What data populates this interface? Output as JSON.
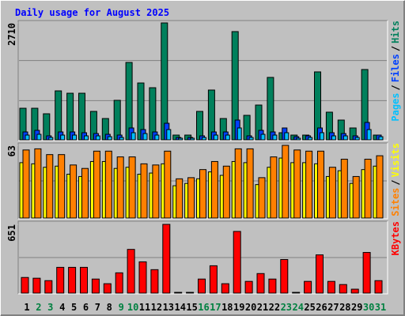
{
  "title": "Daily usage for August 2025",
  "separator": "/",
  "chart_data": [
    {
      "type": "bar",
      "ylim": [
        0,
        2710
      ],
      "yticks": [
        2710
      ],
      "series": [
        {
          "name": "Hits",
          "color": "#00805c",
          "values": [
            732,
            732,
            604,
            1135,
            1080,
            1080,
            659,
            494,
            916,
            1794,
            1318,
            1208,
            2710,
            110,
            110,
            659,
            1154,
            494,
            2509,
            568,
            806,
            1447,
            165,
            110,
            110,
            1575,
            641,
            458,
            275,
            1630,
            110
          ]
        },
        {
          "name": "Files",
          "color": "#0040ff",
          "values": [
            183,
            220,
            92,
            183,
            183,
            165,
            146,
            128,
            110,
            275,
            238,
            183,
            384,
            55,
            55,
            92,
            183,
            183,
            458,
            92,
            220,
            183,
            275,
            73,
            92,
            275,
            165,
            146,
            92,
            403,
            110
          ]
        },
        {
          "name": "Pages",
          "color": "#00c0ff",
          "values": [
            110,
            128,
            55,
            110,
            110,
            92,
            92,
            73,
            55,
            165,
            146,
            110,
            238,
            37,
            37,
            55,
            110,
            110,
            275,
            55,
            128,
            110,
            165,
            37,
            55,
            165,
            92,
            92,
            55,
            238,
            73
          ]
        }
      ]
    },
    {
      "type": "bar",
      "ylim": [
        0,
        63
      ],
      "yticks": [
        63
      ],
      "series": [
        {
          "name": "Visits",
          "color": "#ffff00",
          "values": [
            48,
            47,
            44,
            45,
            38,
            36,
            49,
            49,
            43,
            44,
            38,
            39,
            47,
            28,
            30,
            34,
            40,
            37,
            49,
            48,
            29,
            44,
            52,
            48,
            48,
            47,
            36,
            41,
            30,
            42,
            45
          ]
        },
        {
          "name": "Sites",
          "color": "#ff8000",
          "values": [
            59,
            60,
            55,
            55,
            46,
            43,
            58,
            58,
            53,
            53,
            47,
            46,
            58,
            34,
            35,
            42,
            49,
            45,
            60,
            60,
            35,
            53,
            63,
            59,
            58,
            58,
            44,
            51,
            36,
            51,
            54
          ]
        }
      ]
    },
    {
      "type": "bar",
      "ylim": [
        0,
        651
      ],
      "yticks": [
        651
      ],
      "categories": [
        "1",
        "2",
        "3",
        "4",
        "5",
        "6",
        "7",
        "8",
        "9",
        "10",
        "11",
        "12",
        "13",
        "14",
        "15",
        "16",
        "17",
        "18",
        "19",
        "20",
        "21",
        "22",
        "23",
        "24",
        "25",
        "26",
        "27",
        "28",
        "29",
        "30",
        "31"
      ],
      "category_colors": [
        "#000000",
        "#008040",
        "#008040",
        "#000000",
        "#000000",
        "#000000",
        "#000000",
        "#000000",
        "#008040",
        "#008040",
        "#000000",
        "#000000",
        "#000000",
        "#000000",
        "#000000",
        "#008040",
        "#008040",
        "#000000",
        "#000000",
        "#000000",
        "#000000",
        "#000000",
        "#008040",
        "#008040",
        "#000000",
        "#000000",
        "#000000",
        "#000000",
        "#000000",
        "#008040",
        "#008040"
      ],
      "series": [
        {
          "name": "KBytes",
          "color": "#ff0000",
          "values": [
            148,
            141,
            118,
            244,
            244,
            244,
            133,
            89,
            192,
            414,
            296,
            222,
            651,
            7,
            7,
            133,
            259,
            89,
            584,
            111,
            185,
            133,
            318,
            7,
            111,
            362,
            111,
            81,
            37,
            385,
            118
          ]
        }
      ]
    }
  ]
}
